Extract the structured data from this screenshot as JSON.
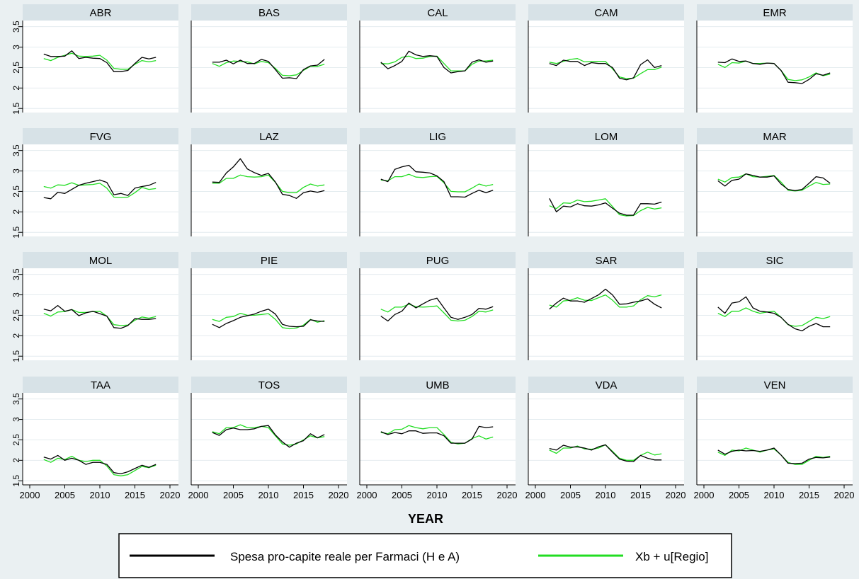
{
  "chart_data": {
    "type": "line",
    "xlabel": "YEAR",
    "xlim": [
      2000,
      2020
    ],
    "xticks": [
      2000,
      2005,
      2010,
      2015,
      2020
    ],
    "ylim": [
      1.4,
      3.65
    ],
    "yticks": [
      1.5,
      2,
      2.5,
      3,
      3.5
    ],
    "ytick_labels": [
      "1.5",
      "2",
      "2.5",
      "3",
      "3.5"
    ],
    "years": [
      2002,
      2003,
      2004,
      2005,
      2006,
      2007,
      2008,
      2009,
      2010,
      2011,
      2012,
      2013,
      2014,
      2015,
      2016,
      2017,
      2018
    ],
    "grid": true,
    "legend_position": "bottom",
    "series_colors": {
      "actual": "#000000",
      "fitted": "#22dd22"
    },
    "legend": [
      {
        "label": "Spesa pro-capite reale per Farmaci (H e A)",
        "color": "#000000"
      },
      {
        "label": "Xb + u[Regio]",
        "color": "#22dd22"
      }
    ],
    "panels": [
      {
        "title": "ABR",
        "actual": [
          2.83,
          2.77,
          2.77,
          2.78,
          2.91,
          2.72,
          2.75,
          2.73,
          2.72,
          2.62,
          2.4,
          2.4,
          2.43,
          2.6,
          2.75,
          2.71,
          2.75
        ],
        "fitted": [
          2.72,
          2.67,
          2.75,
          2.8,
          2.85,
          2.78,
          2.77,
          2.78,
          2.8,
          2.68,
          2.48,
          2.46,
          2.46,
          2.58,
          2.67,
          2.64,
          2.67
        ]
      },
      {
        "title": "BAS",
        "actual": [
          2.63,
          2.63,
          2.68,
          2.59,
          2.68,
          2.6,
          2.6,
          2.7,
          2.65,
          2.45,
          2.24,
          2.25,
          2.23,
          2.45,
          2.54,
          2.56,
          2.7
        ],
        "fitted": [
          2.6,
          2.53,
          2.62,
          2.66,
          2.65,
          2.64,
          2.59,
          2.65,
          2.62,
          2.48,
          2.31,
          2.3,
          2.32,
          2.43,
          2.53,
          2.53,
          2.58
        ]
      },
      {
        "title": "CAL",
        "actual": [
          2.63,
          2.47,
          2.55,
          2.65,
          2.9,
          2.81,
          2.77,
          2.79,
          2.77,
          2.5,
          2.37,
          2.4,
          2.42,
          2.63,
          2.69,
          2.63,
          2.66
        ],
        "fitted": [
          2.6,
          2.59,
          2.64,
          2.75,
          2.78,
          2.72,
          2.73,
          2.77,
          2.78,
          2.6,
          2.42,
          2.42,
          2.42,
          2.58,
          2.66,
          2.66,
          2.68
        ]
      },
      {
        "title": "CAM",
        "actual": [
          2.6,
          2.55,
          2.68,
          2.65,
          2.65,
          2.55,
          2.62,
          2.6,
          2.6,
          2.5,
          2.24,
          2.2,
          2.25,
          2.57,
          2.69,
          2.5,
          2.55
        ],
        "fitted": [
          2.63,
          2.6,
          2.65,
          2.7,
          2.72,
          2.64,
          2.65,
          2.65,
          2.65,
          2.47,
          2.27,
          2.23,
          2.24,
          2.35,
          2.45,
          2.45,
          2.51
        ]
      },
      {
        "title": "EMR",
        "actual": [
          2.63,
          2.62,
          2.71,
          2.65,
          2.66,
          2.6,
          2.58,
          2.61,
          2.6,
          2.43,
          2.14,
          2.13,
          2.11,
          2.21,
          2.35,
          2.31,
          2.37
        ],
        "fitted": [
          2.58,
          2.5,
          2.62,
          2.61,
          2.66,
          2.6,
          2.6,
          2.61,
          2.6,
          2.43,
          2.21,
          2.18,
          2.2,
          2.27,
          2.37,
          2.3,
          2.34
        ]
      },
      {
        "title": "FVG",
        "actual": [
          2.35,
          2.32,
          2.48,
          2.45,
          2.55,
          2.65,
          2.7,
          2.74,
          2.78,
          2.72,
          2.42,
          2.45,
          2.4,
          2.58,
          2.62,
          2.65,
          2.72
        ],
        "fitted": [
          2.62,
          2.58,
          2.66,
          2.65,
          2.71,
          2.65,
          2.66,
          2.67,
          2.7,
          2.58,
          2.36,
          2.35,
          2.36,
          2.47,
          2.6,
          2.55,
          2.57
        ]
      },
      {
        "title": "LAZ",
        "actual": [
          2.73,
          2.72,
          2.95,
          3.1,
          3.3,
          3.05,
          2.96,
          2.89,
          2.94,
          2.73,
          2.43,
          2.4,
          2.33,
          2.47,
          2.51,
          2.48,
          2.52
        ],
        "fitted": [
          2.7,
          2.7,
          2.82,
          2.82,
          2.9,
          2.86,
          2.85,
          2.86,
          2.9,
          2.72,
          2.5,
          2.47,
          2.47,
          2.6,
          2.68,
          2.63,
          2.66
        ]
      },
      {
        "title": "LIG",
        "actual": [
          2.8,
          2.74,
          3.04,
          3.1,
          3.14,
          2.98,
          2.97,
          2.95,
          2.88,
          2.74,
          2.37,
          2.37,
          2.36,
          2.45,
          2.53,
          2.47,
          2.53
        ],
        "fitted": [
          2.78,
          2.76,
          2.86,
          2.86,
          2.92,
          2.85,
          2.84,
          2.86,
          2.87,
          2.71,
          2.5,
          2.49,
          2.49,
          2.58,
          2.68,
          2.63,
          2.67
        ]
      },
      {
        "title": "LOM",
        "actual": [
          2.33,
          2.0,
          2.14,
          2.12,
          2.2,
          2.15,
          2.14,
          2.17,
          2.22,
          2.09,
          1.97,
          1.92,
          1.92,
          2.2,
          2.2,
          2.19,
          2.24
        ],
        "fitted": [
          2.15,
          2.08,
          2.22,
          2.21,
          2.29,
          2.25,
          2.26,
          2.29,
          2.32,
          2.13,
          1.93,
          1.9,
          1.91,
          2.03,
          2.11,
          2.07,
          2.1
        ]
      },
      {
        "title": "MAR",
        "actual": [
          2.76,
          2.63,
          2.77,
          2.8,
          2.93,
          2.89,
          2.85,
          2.85,
          2.88,
          2.68,
          2.55,
          2.52,
          2.55,
          2.7,
          2.86,
          2.83,
          2.7
        ],
        "fitted": [
          2.8,
          2.73,
          2.84,
          2.85,
          2.93,
          2.86,
          2.85,
          2.87,
          2.89,
          2.73,
          2.53,
          2.51,
          2.53,
          2.63,
          2.72,
          2.67,
          2.68
        ]
      },
      {
        "title": "MOL",
        "actual": [
          2.65,
          2.61,
          2.74,
          2.6,
          2.64,
          2.49,
          2.56,
          2.6,
          2.54,
          2.48,
          2.2,
          2.18,
          2.25,
          2.42,
          2.4,
          2.4,
          2.42
        ],
        "fitted": [
          2.55,
          2.48,
          2.58,
          2.59,
          2.64,
          2.57,
          2.57,
          2.59,
          2.6,
          2.48,
          2.27,
          2.25,
          2.26,
          2.38,
          2.46,
          2.43,
          2.47
        ]
      },
      {
        "title": "PIE",
        "actual": [
          2.28,
          2.2,
          2.3,
          2.37,
          2.45,
          2.49,
          2.53,
          2.6,
          2.65,
          2.53,
          2.28,
          2.23,
          2.22,
          2.23,
          2.39,
          2.36,
          2.35
        ],
        "fitted": [
          2.4,
          2.35,
          2.45,
          2.47,
          2.55,
          2.5,
          2.5,
          2.52,
          2.54,
          2.4,
          2.2,
          2.17,
          2.19,
          2.26,
          2.4,
          2.33,
          2.37
        ]
      },
      {
        "title": "PUG",
        "actual": [
          2.48,
          2.36,
          2.52,
          2.6,
          2.8,
          2.68,
          2.78,
          2.87,
          2.92,
          2.68,
          2.45,
          2.4,
          2.45,
          2.52,
          2.67,
          2.65,
          2.71
        ],
        "fitted": [
          2.65,
          2.58,
          2.7,
          2.7,
          2.77,
          2.71,
          2.7,
          2.71,
          2.73,
          2.56,
          2.38,
          2.36,
          2.38,
          2.47,
          2.6,
          2.58,
          2.63
        ]
      },
      {
        "title": "SAR",
        "actual": [
          2.65,
          2.8,
          2.92,
          2.85,
          2.85,
          2.82,
          2.91,
          3.0,
          3.14,
          3.0,
          2.77,
          2.78,
          2.82,
          2.85,
          2.9,
          2.77,
          2.68
        ],
        "fitted": [
          2.75,
          2.7,
          2.85,
          2.87,
          2.93,
          2.87,
          2.86,
          2.93,
          3.0,
          2.87,
          2.7,
          2.7,
          2.73,
          2.88,
          2.98,
          2.95,
          3.0
        ]
      },
      {
        "title": "SIC",
        "actual": [
          2.7,
          2.55,
          2.8,
          2.83,
          2.95,
          2.68,
          2.6,
          2.58,
          2.55,
          2.45,
          2.28,
          2.17,
          2.12,
          2.23,
          2.3,
          2.22,
          2.22
        ],
        "fitted": [
          2.55,
          2.47,
          2.6,
          2.6,
          2.68,
          2.6,
          2.55,
          2.58,
          2.6,
          2.45,
          2.27,
          2.23,
          2.25,
          2.35,
          2.45,
          2.42,
          2.47
        ]
      },
      {
        "title": "TAA",
        "actual": [
          2.08,
          2.03,
          2.12,
          2.0,
          2.05,
          2.0,
          1.9,
          1.95,
          1.95,
          1.9,
          1.7,
          1.67,
          1.72,
          1.8,
          1.88,
          1.83,
          1.9
        ],
        "fitted": [
          2.02,
          1.95,
          2.05,
          2.02,
          2.1,
          2.0,
          1.97,
          2.0,
          2.0,
          1.86,
          1.65,
          1.62,
          1.65,
          1.75,
          1.85,
          1.82,
          1.88
        ]
      },
      {
        "title": "TOS",
        "actual": [
          2.68,
          2.61,
          2.75,
          2.79,
          2.75,
          2.75,
          2.77,
          2.83,
          2.85,
          2.62,
          2.45,
          2.32,
          2.42,
          2.48,
          2.65,
          2.55,
          2.63
        ],
        "fitted": [
          2.7,
          2.65,
          2.8,
          2.8,
          2.87,
          2.8,
          2.8,
          2.83,
          2.8,
          2.6,
          2.4,
          2.37,
          2.4,
          2.5,
          2.6,
          2.55,
          2.58
        ]
      },
      {
        "title": "UMB",
        "actual": [
          2.7,
          2.63,
          2.68,
          2.65,
          2.72,
          2.72,
          2.66,
          2.67,
          2.67,
          2.6,
          2.42,
          2.42,
          2.42,
          2.52,
          2.83,
          2.8,
          2.82
        ],
        "fitted": [
          2.68,
          2.65,
          2.75,
          2.76,
          2.85,
          2.8,
          2.77,
          2.8,
          2.8,
          2.63,
          2.44,
          2.4,
          2.42,
          2.53,
          2.6,
          2.52,
          2.57
        ]
      },
      {
        "title": "VDA",
        "actual": [
          2.29,
          2.25,
          2.37,
          2.32,
          2.33,
          2.3,
          2.25,
          2.33,
          2.38,
          2.2,
          2.03,
          1.98,
          1.97,
          2.12,
          2.05,
          2.01,
          2.01
        ],
        "fitted": [
          2.25,
          2.17,
          2.3,
          2.3,
          2.35,
          2.28,
          2.27,
          2.3,
          2.38,
          2.22,
          2.05,
          2.0,
          2.0,
          2.12,
          2.2,
          2.13,
          2.16
        ]
      },
      {
        "title": "VEN",
        "actual": [
          2.25,
          2.15,
          2.22,
          2.25,
          2.23,
          2.24,
          2.22,
          2.25,
          2.3,
          2.13,
          1.93,
          1.92,
          1.93,
          2.03,
          2.07,
          2.06,
          2.08
        ],
        "fitted": [
          2.2,
          2.12,
          2.25,
          2.23,
          2.3,
          2.25,
          2.2,
          2.25,
          2.28,
          2.13,
          1.95,
          1.9,
          1.9,
          2.0,
          2.1,
          2.07,
          2.1
        ]
      }
    ]
  }
}
